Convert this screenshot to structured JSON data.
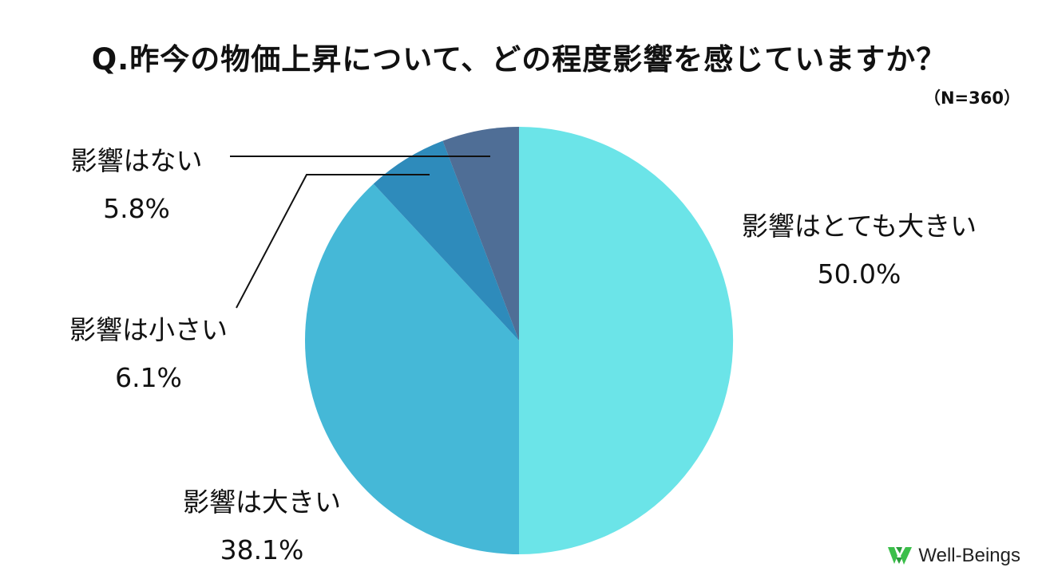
{
  "title": "Q.昨今の物価上昇について、どの程度影響を感じていますか？",
  "sample_size": "（N=360）",
  "brand": {
    "name": "Well-Beings",
    "icon": "well-beings-logo-icon",
    "color": "#3bbf4a"
  },
  "chart_data": {
    "type": "pie",
    "start_angle_deg": 0,
    "direction": "clockwise",
    "slices": [
      {
        "label": "影響はとても大きい",
        "value": 50.0,
        "value_label": "50.0%",
        "color": "#6be4e8"
      },
      {
        "label": "影響は大きい",
        "value": 38.1,
        "value_label": "38.1%",
        "color": "#45b8d7"
      },
      {
        "label": "影響は小さい",
        "value": 6.1,
        "value_label": "6.1%",
        "color": "#2e8bbb"
      },
      {
        "label": "影響はない",
        "value": 5.8,
        "value_label": "5.8%",
        "color": "#4f6e96"
      }
    ]
  }
}
